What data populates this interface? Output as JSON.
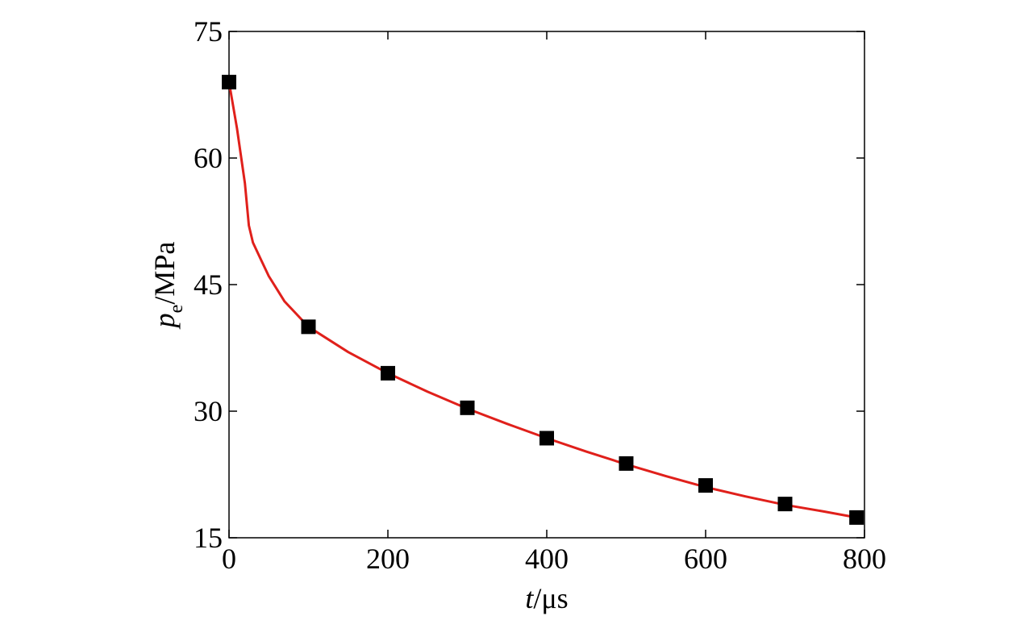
{
  "chart_data": {
    "type": "line",
    "xlabel": {
      "var": "t",
      "unit": "/μs"
    },
    "ylabel": {
      "var": "p",
      "sub": "e",
      "unit": "/MPa"
    },
    "xlim": [
      0,
      800
    ],
    "ylim": [
      15,
      75
    ],
    "xticks": [
      "0",
      "200",
      "400",
      "600",
      "800"
    ],
    "yticks": [
      "15",
      "30",
      "45",
      "60",
      "75"
    ],
    "grid": false,
    "series": [
      {
        "style": "line",
        "color": "#e0201b",
        "x": [
          0,
          10,
          20,
          25,
          30,
          40,
          50,
          60,
          70,
          80,
          100,
          150,
          200,
          250,
          300,
          350,
          400,
          450,
          500,
          550,
          600,
          650,
          700,
          750,
          790
        ],
        "y": [
          69.0,
          63.5,
          57.0,
          52.0,
          50.0,
          48.0,
          46.0,
          44.5,
          43.0,
          42.0,
          40.0,
          37.0,
          34.5,
          32.3,
          30.3,
          28.5,
          26.8,
          25.2,
          23.7,
          22.3,
          21.0,
          19.9,
          18.9,
          18.1,
          17.4
        ]
      },
      {
        "style": "markers",
        "marker": "square",
        "color": "#000000",
        "x": [
          0,
          100,
          200,
          300,
          400,
          500,
          600,
          700,
          790
        ],
        "y": [
          69.0,
          40.0,
          34.5,
          30.4,
          26.8,
          23.8,
          21.2,
          19.0,
          17.4
        ]
      }
    ]
  }
}
